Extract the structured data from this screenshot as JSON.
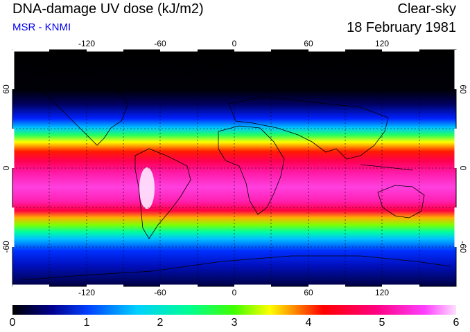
{
  "header": {
    "title": "DNA-damage UV dose (kJ/m2)",
    "subtitle": "MSR - KNMI",
    "sky_condition": "Clear-sky",
    "date": "18 February 1981"
  },
  "map": {
    "lon_ticks": [
      "-120",
      "-60",
      "0",
      "60",
      "120"
    ],
    "lat_ticks_left": [
      "60",
      "0",
      "-60"
    ],
    "lat_ticks_right": [
      "60",
      "0",
      "-60"
    ],
    "projection": "equirectangular",
    "gridlines": "dashed",
    "coastlines": true
  },
  "colorbar": {
    "labels": [
      "0",
      "1",
      "2",
      "3",
      "4",
      "5",
      "6"
    ],
    "min": 0,
    "max": 6,
    "colors": [
      "#000000",
      "#000090",
      "#0040ff",
      "#00d0ff",
      "#00ff90",
      "#40ff00",
      "#ffff00",
      "#ff8000",
      "#ff0000",
      "#ff0080",
      "#ff40ff",
      "#ffe0ff"
    ]
  },
  "colors": {
    "subtitle": "#0000ee",
    "background": "#ffffff"
  }
}
